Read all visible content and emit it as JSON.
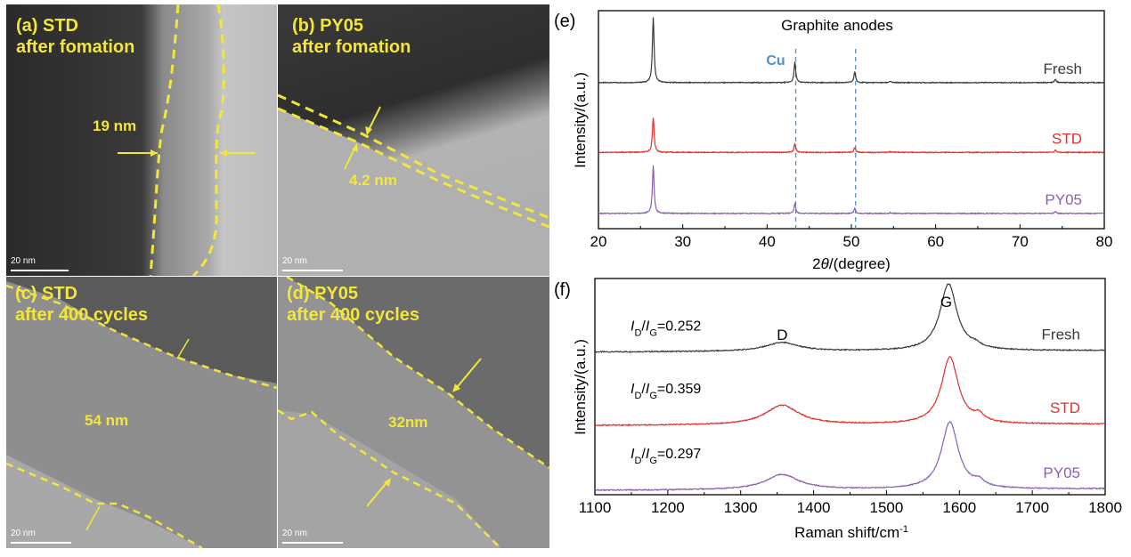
{
  "tem_panels": [
    {
      "id": "a",
      "title_line1": "(a) STD",
      "title_line2": "after fomation",
      "measurement": "19 nm",
      "scale": "20 nm"
    },
    {
      "id": "b",
      "title_line1": "(b) PY05",
      "title_line2": "after fomation",
      "measurement": "4.2 nm",
      "scale": "20 nm"
    },
    {
      "id": "c",
      "title_line1": "(c) STD",
      "title_line2": "after 400 cycles",
      "measurement": "54 nm",
      "scale": "20 nm"
    },
    {
      "id": "d",
      "title_line1": "(d) PY05",
      "title_line2": "after 400 cycles",
      "measurement": "32nm",
      "scale": "20 nm"
    }
  ],
  "colors": {
    "fresh": "#3a3a3a",
    "std": "#e0302a",
    "py05": "#8a5fb0",
    "cu": "#4f8fcf",
    "annotation": "#f2e63a"
  },
  "chart_data": [
    {
      "panel": "(e)",
      "type": "line",
      "title": "Graphite anodes",
      "xlabel": "2θ/(degree)",
      "ylabel": "Intensity/(a.u.)",
      "xlim": [
        20,
        80
      ],
      "xticks": [
        20,
        30,
        40,
        50,
        60,
        70,
        80
      ],
      "grid": false,
      "annotation": {
        "text": "Cu",
        "reference_lines_x": [
          43.4,
          50.5
        ]
      },
      "series": [
        {
          "name": "Fresh",
          "offset": 0.67,
          "peaks": [
            {
              "x": 26.5,
              "h": 0.3
            },
            {
              "x": 43.3,
              "h": 0.095
            },
            {
              "x": 50.4,
              "h": 0.05
            },
            {
              "x": 54.6,
              "h": 0.006
            },
            {
              "x": 74.2,
              "h": 0.015
            }
          ]
        },
        {
          "name": "STD",
          "offset": 0.35,
          "peaks": [
            {
              "x": 26.5,
              "h": 0.16
            },
            {
              "x": 43.3,
              "h": 0.04
            },
            {
              "x": 50.4,
              "h": 0.022
            },
            {
              "x": 54.6,
              "h": 0.004
            },
            {
              "x": 74.2,
              "h": 0.011
            }
          ]
        },
        {
          "name": "PY05",
          "offset": 0.07,
          "peaks": [
            {
              "x": 26.5,
              "h": 0.22
            },
            {
              "x": 43.3,
              "h": 0.045
            },
            {
              "x": 50.4,
              "h": 0.023
            },
            {
              "x": 54.6,
              "h": 0.004
            },
            {
              "x": 74.2,
              "h": 0.008
            }
          ]
        }
      ]
    },
    {
      "panel": "(f)",
      "type": "line",
      "xlabel": "Raman shift/cm-1",
      "ylabel": "Intensity/(a.u.)",
      "xlim": [
        1100,
        1800
      ],
      "xticks": [
        1100,
        1200,
        1300,
        1400,
        1500,
        1600,
        1700,
        1800
      ],
      "grid": false,
      "peak_labels": [
        {
          "text": "D",
          "x": 1357
        },
        {
          "text": "G",
          "x": 1582
        }
      ],
      "series": [
        {
          "name": "Fresh",
          "ratio_label": "0.252",
          "offset": 0.66,
          "D": {
            "x": 1357,
            "h": 0.04
          },
          "G": {
            "x": 1585,
            "h": 0.31
          },
          "Dp": {
            "x": 1622,
            "h": 0.015
          }
        },
        {
          "name": "STD",
          "ratio_label": "0.359",
          "offset": 0.32,
          "D": {
            "x": 1357,
            "h": 0.09
          },
          "G": {
            "x": 1587,
            "h": 0.31
          },
          "Dp": {
            "x": 1627,
            "h": 0.03
          }
        },
        {
          "name": "PY05",
          "ratio_label": "0.297",
          "offset": 0.02,
          "D": {
            "x": 1357,
            "h": 0.07
          },
          "G": {
            "x": 1587,
            "h": 0.31
          },
          "Dp": {
            "x": 1627,
            "h": 0.025
          }
        }
      ]
    }
  ]
}
